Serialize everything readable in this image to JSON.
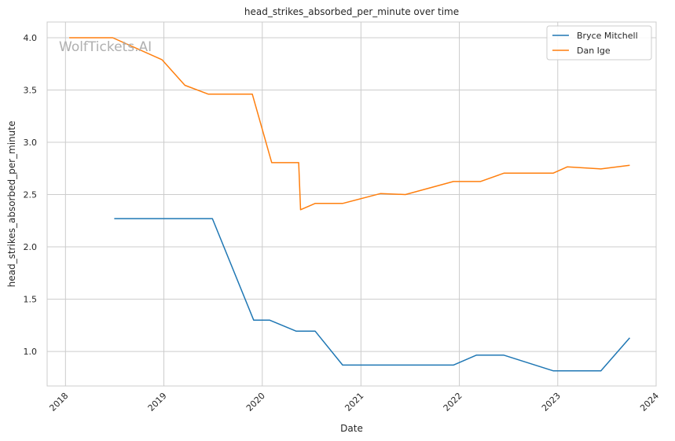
{
  "chart_data": {
    "type": "line",
    "title": "head_strikes_absorbed_per_minute over time",
    "xlabel": "Date",
    "ylabel": "head_strikes_absorbed_per_minute",
    "watermark": "WolfTickets.AI",
    "xlim": [
      "2017-10-25",
      "2024-01-01"
    ],
    "ylim": [
      0.67,
      4.15
    ],
    "x_ticks": [
      "2018",
      "2019",
      "2020",
      "2021",
      "2022",
      "2023",
      "2024"
    ],
    "y_ticks": [
      "1.0",
      "1.5",
      "2.0",
      "2.5",
      "3.0",
      "3.5",
      "4.0"
    ],
    "grid": true,
    "legend_position": "top-right",
    "series": [
      {
        "name": "Bryce Mitchell",
        "color": "#1f77b4",
        "points": [
          {
            "x": "2018-07-01",
            "y": 2.27
          },
          {
            "x": "2019-06-30",
            "y": 2.27
          },
          {
            "x": "2019-11-30",
            "y": 1.3
          },
          {
            "x": "2020-01-28",
            "y": 1.3
          },
          {
            "x": "2020-05-05",
            "y": 1.195
          },
          {
            "x": "2020-07-15",
            "y": 1.195
          },
          {
            "x": "2020-10-25",
            "y": 0.87
          },
          {
            "x": "2021-12-10",
            "y": 0.87
          },
          {
            "x": "2022-03-05",
            "y": 0.965
          },
          {
            "x": "2022-06-15",
            "y": 0.965
          },
          {
            "x": "2022-12-15",
            "y": 0.815
          },
          {
            "x": "2023-06-10",
            "y": 0.815
          },
          {
            "x": "2023-09-25",
            "y": 1.13
          }
        ]
      },
      {
        "name": "Dan Ige",
        "color": "#ff7f0e",
        "points": [
          {
            "x": "2018-01-15",
            "y": 4.0
          },
          {
            "x": "2018-06-25",
            "y": 4.0
          },
          {
            "x": "2018-12-25",
            "y": 3.79
          },
          {
            "x": "2019-03-20",
            "y": 3.545
          },
          {
            "x": "2019-06-15",
            "y": 3.46
          },
          {
            "x": "2019-11-25",
            "y": 3.46
          },
          {
            "x": "2020-02-05",
            "y": 2.805
          },
          {
            "x": "2020-05-15",
            "y": 2.805
          },
          {
            "x": "2020-05-22",
            "y": 2.355
          },
          {
            "x": "2020-07-15",
            "y": 2.415
          },
          {
            "x": "2020-10-25",
            "y": 2.415
          },
          {
            "x": "2021-03-15",
            "y": 2.51
          },
          {
            "x": "2021-06-15",
            "y": 2.5
          },
          {
            "x": "2021-12-10",
            "y": 2.625
          },
          {
            "x": "2022-03-20",
            "y": 2.625
          },
          {
            "x": "2022-06-15",
            "y": 2.705
          },
          {
            "x": "2022-12-15",
            "y": 2.705
          },
          {
            "x": "2023-02-05",
            "y": 2.765
          },
          {
            "x": "2023-06-10",
            "y": 2.745
          },
          {
            "x": "2023-09-25",
            "y": 2.78
          }
        ]
      }
    ]
  }
}
